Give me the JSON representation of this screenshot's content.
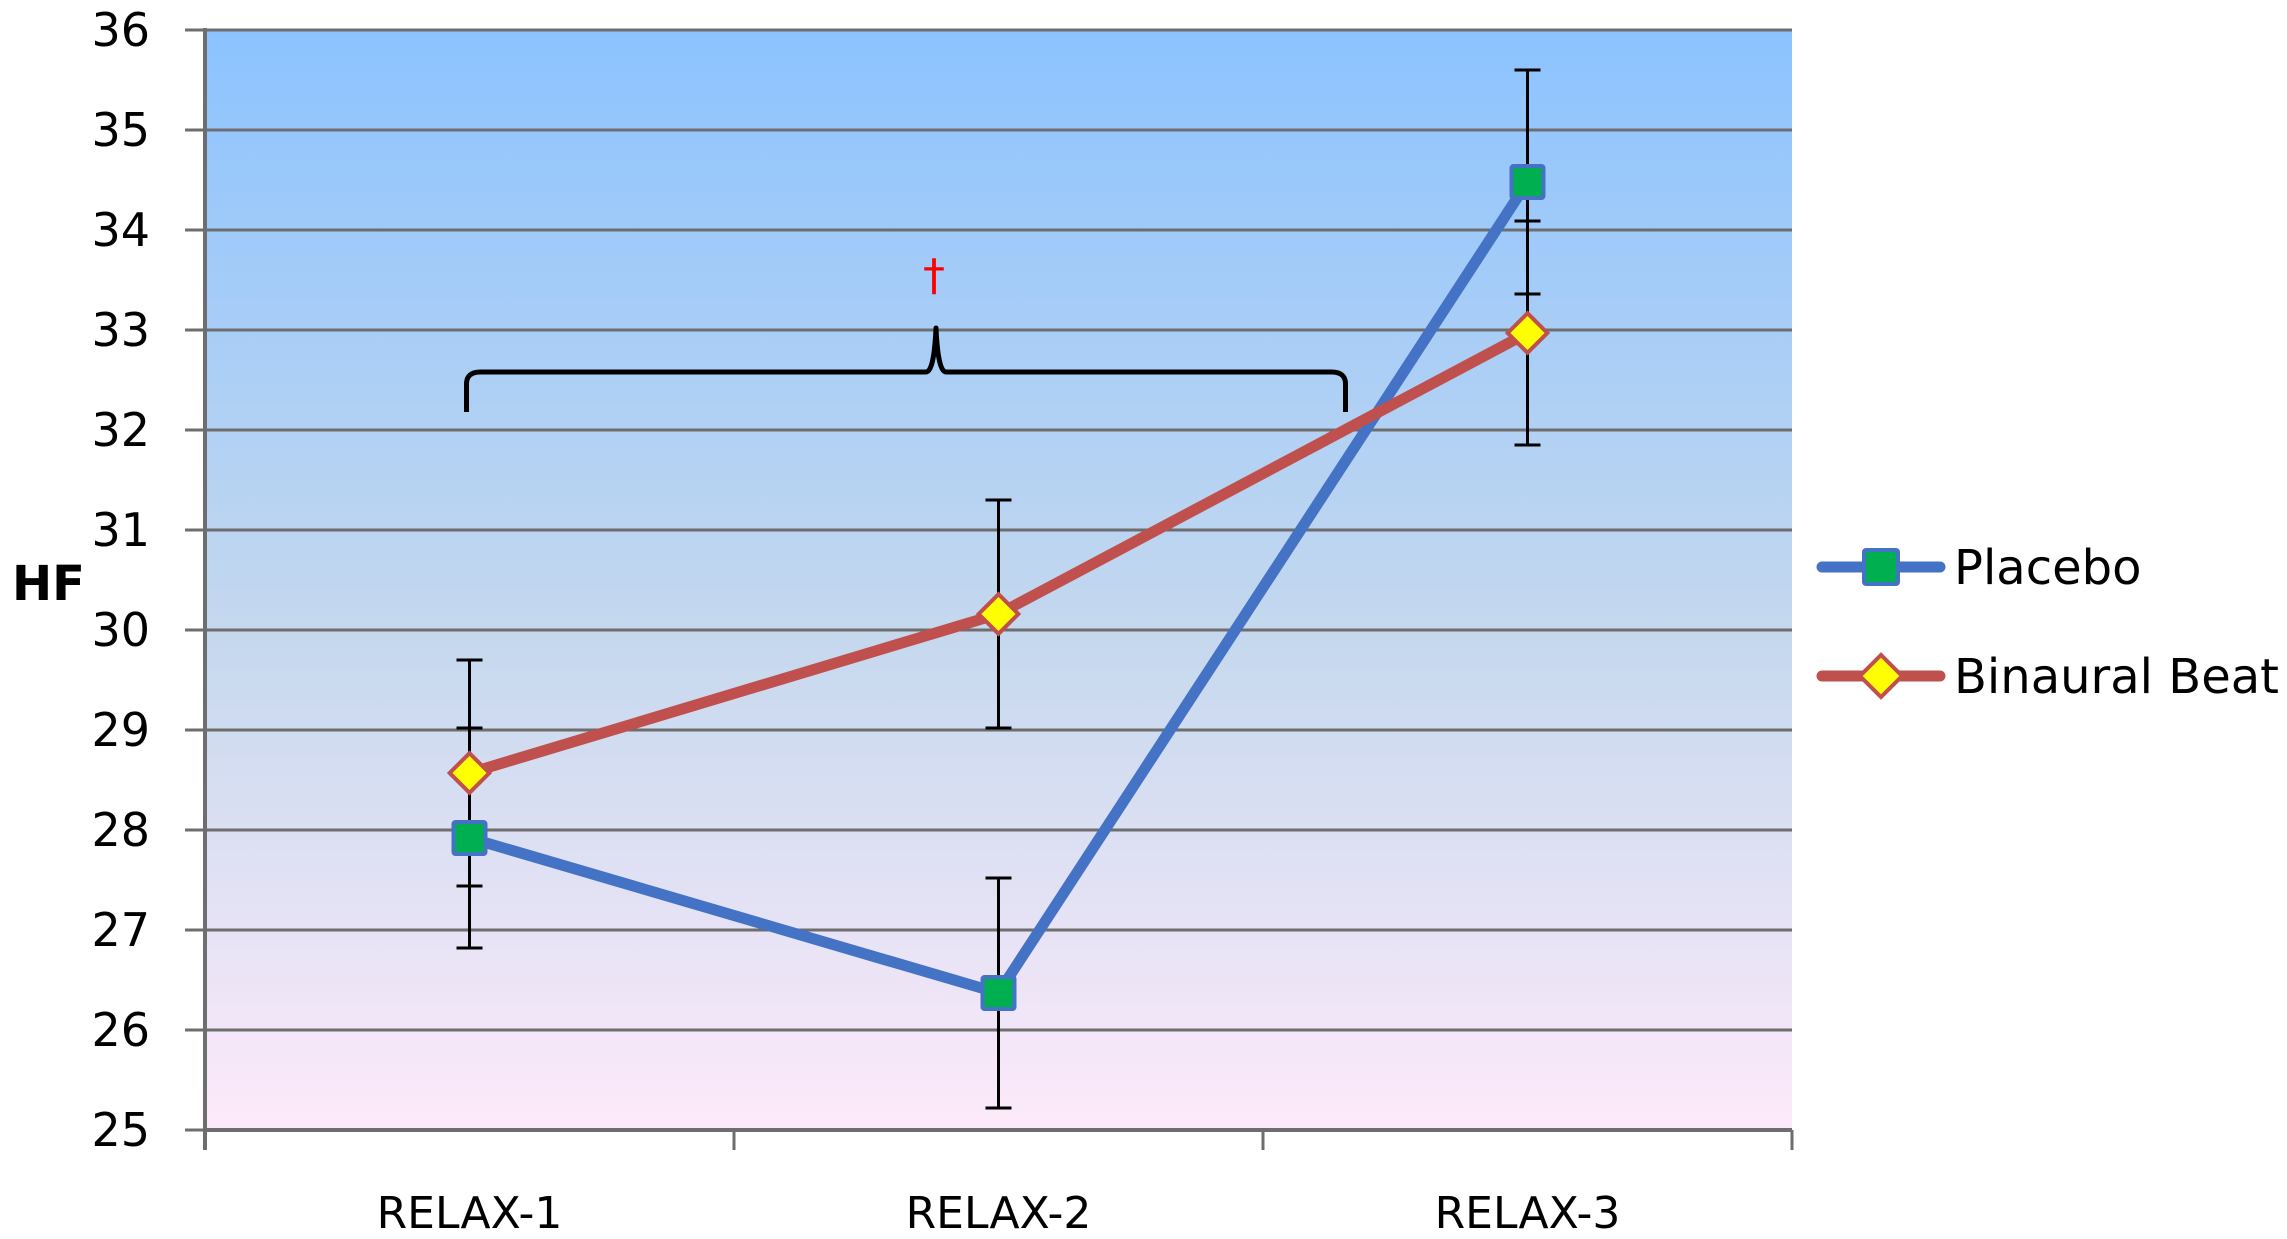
{
  "chart_data": {
    "type": "line",
    "title": "",
    "xlabel": "",
    "ylabel": "HF",
    "categories": [
      "RELAX-1",
      "RELAX-2",
      "RELAX-3"
    ],
    "ylim": [
      25,
      36
    ],
    "yticks": [
      25,
      26,
      27,
      28,
      29,
      30,
      31,
      32,
      33,
      34,
      35,
      36
    ],
    "grid": true,
    "legend_position": "right",
    "series": [
      {
        "name": "Placebo",
        "values": [
          27.92,
          26.37,
          34.48
        ],
        "error": [
          1.1,
          1.15,
          1.12
        ],
        "line_color": "#4472C4",
        "marker": "square",
        "marker_fill": "#00B050",
        "marker_edge": "#4472C4"
      },
      {
        "name": "Binaural Beat",
        "values": [
          28.57,
          30.16,
          32.97
        ],
        "error": [
          1.13,
          1.14,
          1.12
        ],
        "line_color": "#C0504D",
        "marker": "diamond",
        "marker_fill": "#FFFF00",
        "marker_edge": "#C0504D"
      }
    ],
    "annotations": [
      {
        "type": "brace",
        "from_category": "RELAX-1",
        "to_category": "RELAX-3",
        "y_value": 32.6,
        "label": "†",
        "label_color": "#FF0000"
      }
    ],
    "background_gradient": [
      "#8CC3FF",
      "#C5D8EE",
      "#FDEAFA"
    ]
  }
}
